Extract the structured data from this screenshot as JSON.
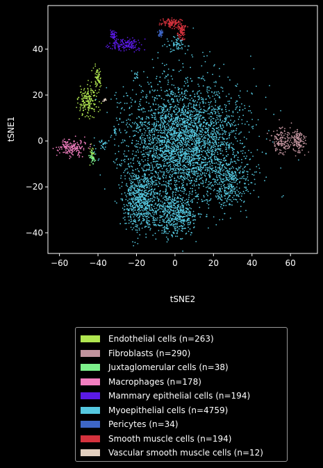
{
  "chart_data": {
    "type": "scatter",
    "title": "",
    "xlabel": "tSNE2",
    "ylabel": "tSNE1",
    "xlim": [
      -66,
      74
    ],
    "ylim": [
      -49,
      59
    ],
    "xticks": [
      -60,
      -40,
      -20,
      0,
      20,
      40,
      60
    ],
    "yticks": [
      -40,
      -20,
      0,
      20,
      40
    ],
    "xtick_labels": [
      "−60",
      "−40",
      "−20",
      "0",
      "20",
      "40",
      "60"
    ],
    "ytick_labels": [
      "−40",
      "−20",
      "0",
      "20",
      "40"
    ],
    "legend_position": "bottom-center, outside plot",
    "series": [
      {
        "name": "Endothelial cells (n=263)",
        "color": "#b0e650",
        "clusters": [
          {
            "cx": -45,
            "cy": 17,
            "sx": 2.6,
            "sy": 3.5,
            "n": 180
          },
          {
            "cx": -40,
            "cy": 27,
            "sx": 0.8,
            "sy": 2.5,
            "n": 60
          },
          {
            "cx": -43,
            "cy": -6,
            "sx": 0.6,
            "sy": 1.5,
            "n": 23
          }
        ]
      },
      {
        "name": "Fibroblasts (n=290)",
        "color": "#c1939d",
        "clusters": [
          {
            "cx": 55,
            "cy": 0,
            "sx": 2.2,
            "sy": 2.8,
            "n": 150
          },
          {
            "cx": 64,
            "cy": 0,
            "sx": 2.0,
            "sy": 2.6,
            "n": 140
          }
        ]
      },
      {
        "name": "Juxtaglomerular cells (n=38)",
        "color": "#7cf08b",
        "clusters": [
          {
            "cx": -43,
            "cy": -7,
            "sx": 0.8,
            "sy": 1.5,
            "n": 38
          }
        ]
      },
      {
        "name": "Macrophages (n=178)",
        "color": "#f27ec0",
        "clusters": [
          {
            "cx": -54,
            "cy": -3,
            "sx": 3.2,
            "sy": 1.6,
            "n": 178
          }
        ]
      },
      {
        "name": "Mammary epithelial cells (n=194)",
        "color": "#5a1ae6",
        "clusters": [
          {
            "cx": -25,
            "cy": 42,
            "sx": 3.8,
            "sy": 1.4,
            "n": 150
          },
          {
            "cx": -32,
            "cy": 46.5,
            "sx": 0.8,
            "sy": 1.2,
            "n": 44
          }
        ]
      },
      {
        "name": "Myoepithelial cells (n=4759)",
        "color": "#55c8e0",
        "clusters": [
          {
            "cx": 5,
            "cy": 0,
            "sx": 15,
            "sy": 13,
            "n": 3200
          },
          {
            "cx": -18,
            "cy": -26,
            "sx": 4.5,
            "sy": 6.5,
            "n": 650
          },
          {
            "cx": 0,
            "cy": -32,
            "sx": 6,
            "sy": 5,
            "n": 500
          },
          {
            "cx": 28,
            "cy": -18,
            "sx": 5,
            "sy": 5,
            "n": 300
          },
          {
            "cx": 1,
            "cy": 42,
            "sx": 2.5,
            "sy": 1.5,
            "n": 60
          },
          {
            "cx": -37,
            "cy": -1,
            "sx": 1.5,
            "sy": 1.0,
            "n": 25
          },
          {
            "cx": -31,
            "cy": 4,
            "sx": 0.6,
            "sy": 0.8,
            "n": 14
          },
          {
            "cx": -20,
            "cy": 28,
            "sx": 0.6,
            "sy": 1.2,
            "n": 10
          }
        ]
      },
      {
        "name": "Pericytes (n=34)",
        "color": "#3e66c6",
        "clusters": [
          {
            "cx": -7.5,
            "cy": 47,
            "sx": 0.7,
            "sy": 0.8,
            "n": 34
          }
        ]
      },
      {
        "name": "Smooth muscle cells (n=194)",
        "color": "#d4323d",
        "clusters": [
          {
            "cx": -2,
            "cy": 51.5,
            "sx": 2.8,
            "sy": 1.0,
            "n": 110
          },
          {
            "cx": 3.5,
            "cy": 48,
            "sx": 1.0,
            "sy": 2.2,
            "n": 84
          }
        ]
      },
      {
        "name": "Vascular smooth muscle cells (n=12)",
        "color": "#e1cebe",
        "clusters": [
          {
            "cx": -36.5,
            "cy": 17.5,
            "sx": 0.4,
            "sy": 0.6,
            "n": 12
          }
        ]
      }
    ]
  }
}
